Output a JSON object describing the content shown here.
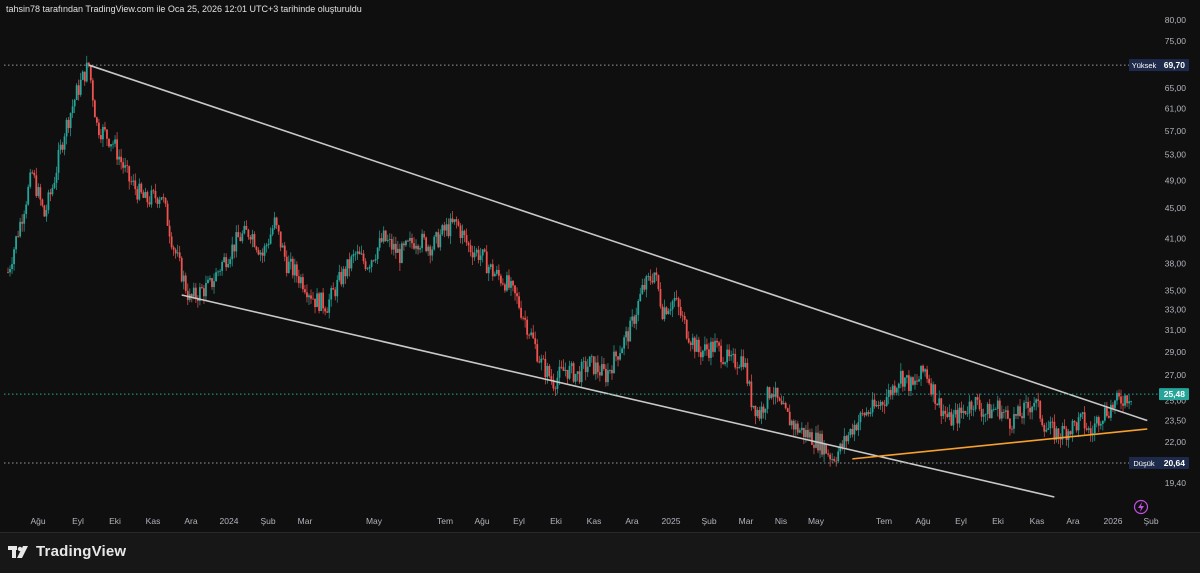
{
  "caption": "tahsin78 tarafından TradingView.com ile Oca 25, 2026 12:01 UTC+3 tarihinde oluşturuldu",
  "brand": {
    "name": "TradingView"
  },
  "colors": {
    "background": "#0f0f0f",
    "up": "#26a69a",
    "down": "#ef5350",
    "trendline": "#c8c8c8",
    "support": "#f7a12c",
    "current": "#26a69a",
    "label_dark": "#1e2a4a"
  },
  "chart_data": {
    "type": "candlestick",
    "price_axis_ticks": [
      "80,00",
      "75,00",
      "70,00",
      "65,00",
      "61,00",
      "57,00",
      "53,00",
      "49,00",
      "45,00",
      "41,00",
      "38,00",
      "35,00",
      "33,00",
      "31,00",
      "29,00",
      "27,00",
      "25,00",
      "23,50",
      "22,00",
      "20,50",
      "19,40"
    ],
    "time_axis_ticks": [
      "Ağu",
      "Eyl",
      "Eki",
      "Kas",
      "Ara",
      "2024",
      "Şub",
      "Mar",
      "May",
      "Tem",
      "Ağu",
      "Eyl",
      "Eki",
      "Kas",
      "Ara",
      "2025",
      "Şub",
      "Mar",
      "Nis",
      "May",
      "Tem",
      "Ağu",
      "Eyl",
      "Eki",
      "Kas",
      "Ara",
      "2026",
      "Şub"
    ],
    "ylim": [
      18.6,
      80
    ],
    "y_scale": "log",
    "markers": {
      "high": {
        "label": "Yüksek",
        "value": "69,70",
        "price": 69.7
      },
      "low": {
        "label": "Düşük",
        "value": "20,64",
        "price": 20.64
      },
      "last": {
        "label": "",
        "value": "25,48",
        "price": 25.48
      }
    },
    "series_path": [
      [
        0,
        37
      ],
      [
        0.3,
        43
      ],
      [
        0.6,
        50
      ],
      [
        0.9,
        44
      ],
      [
        1.1,
        48
      ],
      [
        1.4,
        57
      ],
      [
        1.7,
        64
      ],
      [
        1.9,
        68
      ],
      [
        2.0,
        69.7
      ],
      [
        2.2,
        58
      ],
      [
        2.6,
        55
      ],
      [
        3.0,
        49
      ],
      [
        3.4,
        46
      ],
      [
        3.8,
        47
      ],
      [
        4.1,
        40
      ],
      [
        4.5,
        34
      ],
      [
        4.8,
        35
      ],
      [
        5.0,
        35.5
      ],
      [
        5.3,
        38
      ],
      [
        5.7,
        41
      ],
      [
        6.0,
        42
      ],
      [
        6.3,
        39
      ],
      [
        6.6,
        43
      ],
      [
        6.9,
        38
      ],
      [
        7.3,
        36
      ],
      [
        7.6,
        34
      ],
      [
        7.9,
        33.5
      ],
      [
        8.2,
        36
      ],
      [
        8.6,
        39
      ],
      [
        8.9,
        38
      ],
      [
        9.3,
        41
      ],
      [
        9.7,
        39
      ],
      [
        10.1,
        41
      ],
      [
        10.5,
        40
      ],
      [
        10.8,
        42
      ],
      [
        11.1,
        43
      ],
      [
        11.4,
        40
      ],
      [
        11.7,
        39
      ],
      [
        12.0,
        37
      ],
      [
        12.3,
        36
      ],
      [
        12.6,
        34
      ],
      [
        12.9,
        31
      ],
      [
        13.2,
        28
      ],
      [
        13.5,
        26.5
      ],
      [
        13.8,
        27.5
      ],
      [
        14.1,
        27
      ],
      [
        14.4,
        28
      ],
      [
        14.8,
        27
      ],
      [
        15.1,
        29
      ],
      [
        15.4,
        31
      ],
      [
        15.7,
        35
      ],
      [
        16.0,
        37
      ],
      [
        16.2,
        33
      ],
      [
        16.5,
        34
      ],
      [
        16.8,
        31
      ],
      [
        17.1,
        29
      ],
      [
        17.5,
        29.5
      ],
      [
        17.9,
        28
      ],
      [
        18.2,
        28.5
      ],
      [
        18.4,
        25
      ],
      [
        18.6,
        24
      ],
      [
        18.9,
        26
      ],
      [
        19.1,
        24.5
      ],
      [
        19.5,
        23
      ],
      [
        19.8,
        22.5
      ],
      [
        20.1,
        22
      ],
      [
        20.4,
        21
      ],
      [
        20.6,
        21.5
      ],
      [
        20.9,
        23
      ],
      [
        21.2,
        24
      ],
      [
        21.5,
        24.5
      ],
      [
        21.8,
        25.5
      ],
      [
        22.1,
        27
      ],
      [
        22.4,
        26
      ],
      [
        22.7,
        27.5
      ],
      [
        23.0,
        25
      ],
      [
        23.3,
        23.5
      ],
      [
        23.6,
        24
      ],
      [
        23.9,
        25
      ],
      [
        24.2,
        24
      ],
      [
        24.5,
        24.5
      ],
      [
        24.8,
        23.5
      ],
      [
        25.1,
        24
      ],
      [
        25.4,
        25
      ],
      [
        25.7,
        23
      ],
      [
        26.0,
        22.5
      ],
      [
        26.3,
        23
      ],
      [
        26.6,
        23.5
      ],
      [
        26.8,
        22.5
      ],
      [
        27.0,
        23.8
      ],
      [
        27.3,
        24.5
      ],
      [
        27.6,
        25.2
      ],
      [
        27.8,
        25.48
      ]
    ],
    "trendlines": [
      {
        "kind": "upper",
        "from": [
          2.0,
          69.7
        ],
        "to": [
          28.2,
          23.5
        ]
      },
      {
        "kind": "lower",
        "from": [
          4.3,
          34.5
        ],
        "to": [
          25.9,
          18.6
        ]
      },
      {
        "kind": "support",
        "from": [
          20.9,
          20.9
        ],
        "to": [
          28.2,
          22.9
        ]
      }
    ]
  }
}
